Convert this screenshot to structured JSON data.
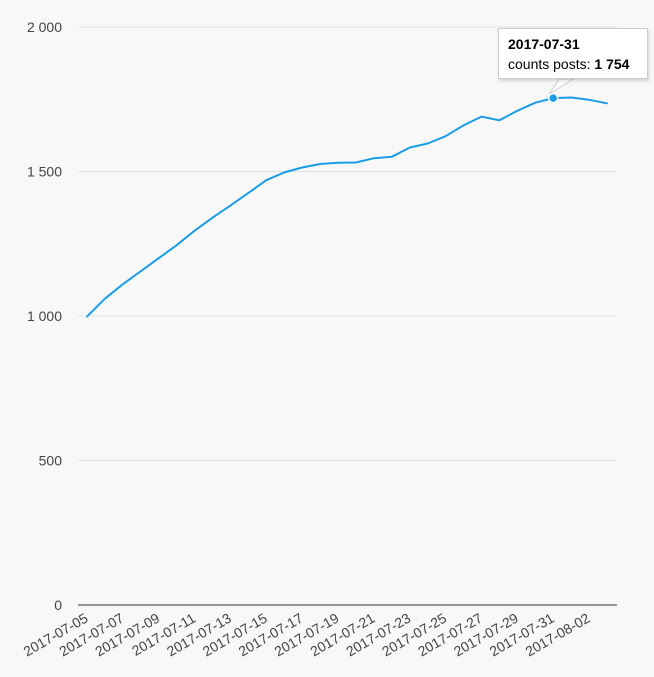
{
  "chart_data": {
    "type": "line",
    "title": "",
    "xlabel": "",
    "ylabel": "",
    "ylim": [
      0,
      2000
    ],
    "y_ticks": [
      0,
      500,
      1000,
      1500,
      2000
    ],
    "y_tick_labels": [
      "0",
      "500",
      "1 000",
      "1 500",
      "2 000"
    ],
    "x_tick_labels": [
      "2017-07-05",
      "2017-07-07",
      "2017-07-09",
      "2017-07-11",
      "2017-07-13",
      "2017-07-15",
      "2017-07-17",
      "2017-07-19",
      "2017-07-21",
      "2017-07-23",
      "2017-07-25",
      "2017-07-27",
      "2017-07-29",
      "2017-07-31",
      "2017-08-02"
    ],
    "grid": true,
    "legend": "none",
    "x": [
      "2017-07-05",
      "2017-07-06",
      "2017-07-07",
      "2017-07-08",
      "2017-07-09",
      "2017-07-10",
      "2017-07-11",
      "2017-07-12",
      "2017-07-13",
      "2017-07-14",
      "2017-07-15",
      "2017-07-16",
      "2017-07-17",
      "2017-07-18",
      "2017-07-19",
      "2017-07-20",
      "2017-07-21",
      "2017-07-22",
      "2017-07-23",
      "2017-07-24",
      "2017-07-25",
      "2017-07-26",
      "2017-07-27",
      "2017-07-28",
      "2017-07-29",
      "2017-07-30",
      "2017-07-31",
      "2017-08-01",
      "2017-08-02",
      "2017-08-03"
    ],
    "series": [
      {
        "name": "counts posts",
        "color": "#1a9de5",
        "values": [
          998,
          1060,
          1110,
          1155,
          1200,
          1245,
          1295,
          1340,
          1382,
          1426,
          1470,
          1497,
          1514,
          1526,
          1530,
          1531,
          1546,
          1551,
          1583,
          1597,
          1622,
          1660,
          1690,
          1677,
          1710,
          1738,
          1754,
          1756,
          1748,
          1736
        ]
      }
    ],
    "tooltip": {
      "date": "2017-07-31",
      "label": "counts posts: ",
      "value": "1 754",
      "point_index": 26
    }
  }
}
